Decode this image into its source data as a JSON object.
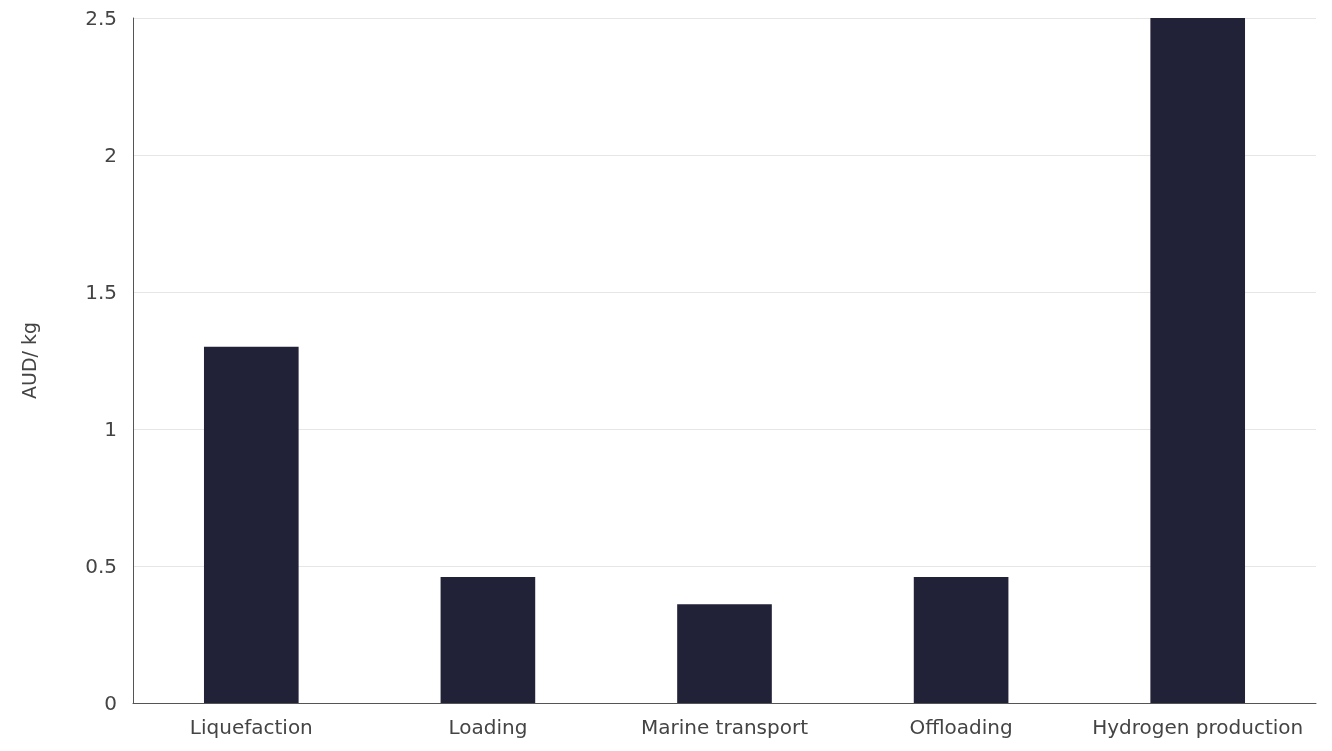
{
  "chart_data": {
    "type": "bar",
    "ylabel": "AUD/ kg",
    "categories": [
      "Liquefaction",
      "Loading",
      "Marine transport",
      "Offloading",
      "Hydrogen production"
    ],
    "values": [
      1.3,
      0.46,
      0.36,
      0.46,
      2.5
    ],
    "color": "#212138",
    "ylim": [
      0,
      2.5
    ],
    "yticks": [
      0,
      0.5,
      1,
      1.5,
      2,
      2.5
    ],
    "grid": "y"
  }
}
